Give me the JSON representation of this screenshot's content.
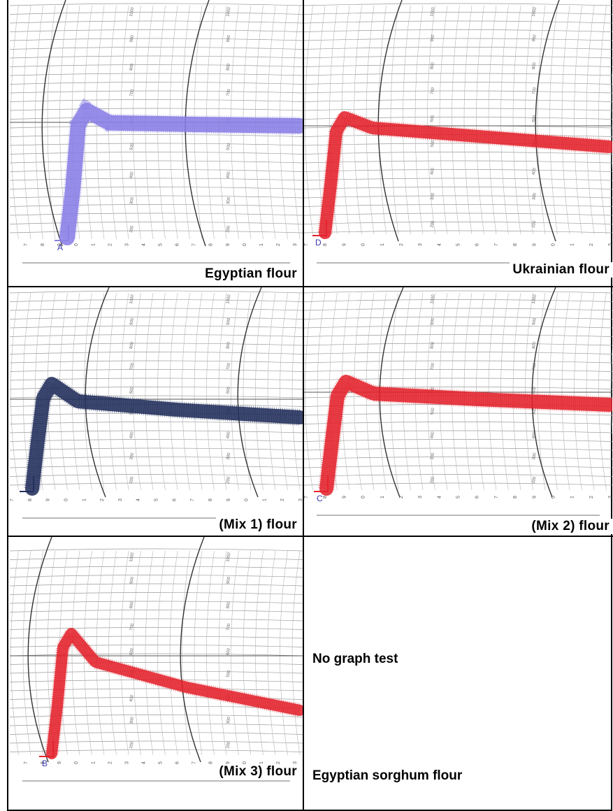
{
  "panels": [
    {
      "caption": "Egyptian flour",
      "trace_color": "#8a80e6",
      "corner_mark": "A"
    },
    {
      "caption": "Ukrainian flour",
      "trace_color": "#e4232e",
      "corner_mark": "D"
    },
    {
      "caption": "(Mix 1) flour",
      "trace_color": "#23305c",
      "corner_mark": ""
    },
    {
      "caption": "(Mix 2) flour",
      "trace_color": "#e4232e",
      "corner_mark": "C"
    },
    {
      "caption": "(Mix 3) flour",
      "trace_color": "#e4232e",
      "corner_mark": "B"
    }
  ],
  "empty_panel": {
    "note": "No graph test",
    "caption": "Egyptian sorghum flour"
  },
  "chart_paper": {
    "scale_labels": [
      "200",
      "300",
      "400",
      "500",
      "600",
      "700",
      "800",
      "900",
      "1000"
    ],
    "time_labels": [
      "7",
      "8",
      "9",
      "0",
      "1",
      "2",
      "3",
      "4",
      "5",
      "6",
      "7",
      "8",
      "9",
      "0",
      "1",
      "2",
      "3"
    ]
  }
}
